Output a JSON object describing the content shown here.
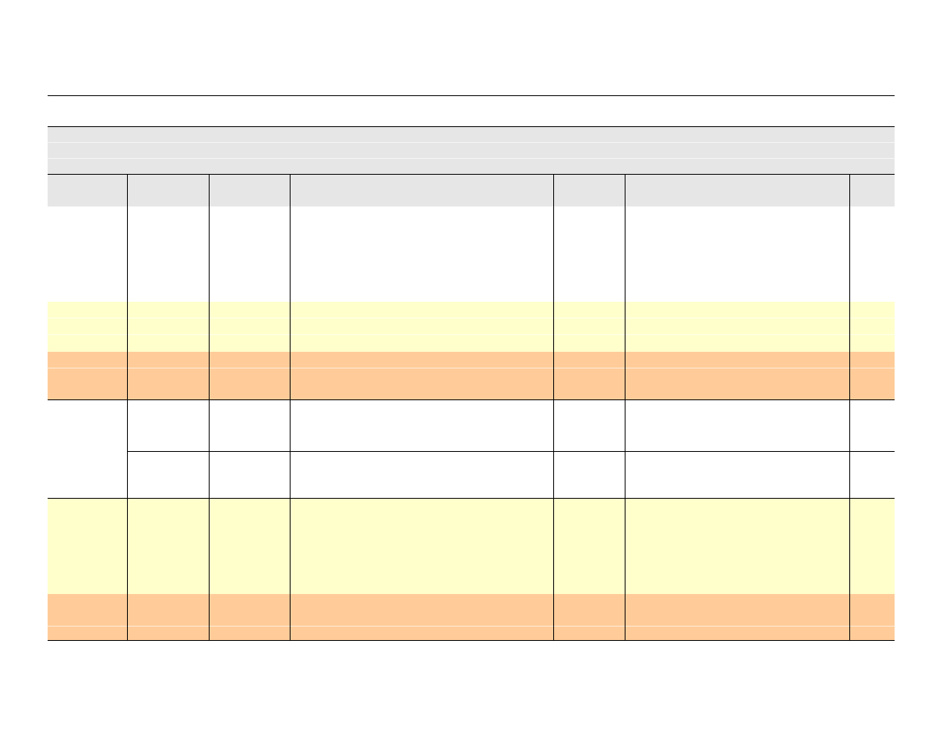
{
  "colors": {
    "header_band": "#e6e6e6",
    "highlight_yellow": "#ffffcc",
    "highlight_orange": "#ffcc99",
    "border": "#000000",
    "background": "#ffffff"
  },
  "table": {
    "title": "",
    "columns": 8,
    "rows": []
  }
}
